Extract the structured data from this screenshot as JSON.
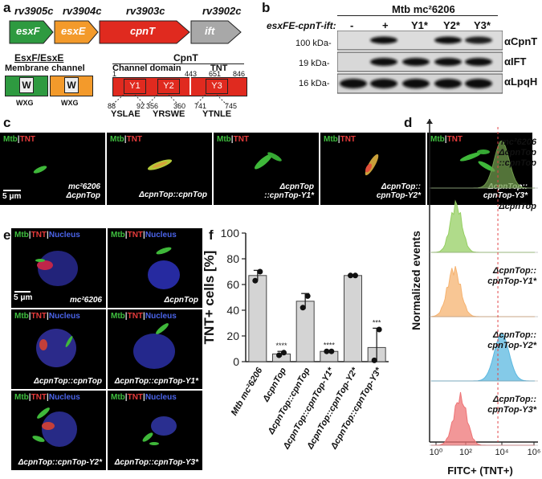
{
  "panel_letters": {
    "a": "a",
    "b": "b",
    "c": "c",
    "d": "d",
    "e": "e",
    "f": "f"
  },
  "panel_a": {
    "genes": [
      "rv3905c",
      "rv3904c",
      "rv3903c",
      "rv3902c"
    ],
    "gene_names": [
      "esxF",
      "esxE",
      "cpnT",
      "ift"
    ],
    "esx_title": "EsxF/EsxE",
    "esx_subtitle": "Membrane channel",
    "w": "W",
    "wxg": "WXG",
    "cpnt_title": "CpnT",
    "channel_domain": "Channel domain",
    "tnt": "TNT",
    "coords": [
      "1",
      "443",
      "651",
      "846"
    ],
    "y_labels": [
      "Y1",
      "Y2",
      "Y3"
    ],
    "motif_nums": [
      "88",
      "92",
      "356",
      "360",
      "741",
      "745"
    ],
    "motifs": [
      "YSLAE",
      "YRSWE",
      "YTNLE"
    ]
  },
  "panel_b": {
    "strain": "Mtb mc²6206",
    "row_label": "esxFE-cpnT-ift:",
    "lanes": [
      "-",
      "+",
      "Y1*",
      "Y2*",
      "Y3*"
    ],
    "kda": [
      "100 kDa-",
      "19 kDa-",
      "16 kDa-"
    ],
    "antibodies": [
      "αCpnT",
      "αIFT",
      "αLpqH"
    ]
  },
  "panel_c": {
    "channel_mtb": "Mtb",
    "channel_tnt": "TNT",
    "sep": "|",
    "scale": "5 μm",
    "captions": [
      [
        "mc²6206",
        "ΔcpnTop"
      ],
      [
        "ΔcpnTop::cpnTop"
      ],
      [
        "ΔcpnTop",
        "::cpnTop-Y1*"
      ],
      [
        "ΔcpnTop::",
        "cpnTop-Y2*"
      ],
      [
        "ΔcpnTop::",
        "cpnTop-Y3*"
      ]
    ]
  },
  "panel_e": {
    "channel_nucleus": "Nucleus",
    "scale": "5 μm",
    "captions": [
      "mc²6206",
      "ΔcpnTop",
      "ΔcpnTop::cpnTop",
      "ΔcpnTop::cpnTop-Y1*",
      "ΔcpnTop::cpnTop-Y2*",
      "ΔcpnTop::cpnTop-Y3*"
    ]
  },
  "panel_d": {
    "ylabel": "Normalized events",
    "xlabel": "FITC+ (TNT+)",
    "tick_labels": [
      "10⁰",
      "10²",
      "10⁴",
      "10⁶"
    ],
    "labels": [
      [
        "mc²6206",
        "ΔcpnTop",
        "::cpnTop"
      ],
      [
        "ΔcpnTop"
      ],
      [
        "ΔcpnTop::",
        "cpnTop-Y1*"
      ],
      [
        "ΔcpnTop::",
        "cpnTop-Y2*"
      ],
      [
        "ΔcpnTop::",
        "cpnTop-Y3*"
      ]
    ],
    "colors": [
      "#6f9a4c",
      "#96cf63",
      "#f6b370",
      "#5bb8e0",
      "#ee7476"
    ]
  },
  "chart_data": {
    "type": "bar",
    "categories": [
      "Mtb mc²6206",
      "ΔcpnTop",
      "ΔcpnTop::cpnTop",
      "ΔcpnTop::cpnTop-Y1*",
      "ΔcpnTop::cpnTop-Y2*",
      "ΔcpnTop::cpnTop-Y3*"
    ],
    "values": [
      67,
      6,
      47,
      8,
      67,
      11
    ],
    "errors": [
      4,
      2,
      6,
      0.5,
      0.5,
      15
    ],
    "points": [
      [
        63,
        70
      ],
      [
        5,
        7
      ],
      [
        42,
        51
      ],
      [
        8,
        8
      ],
      [
        67,
        67
      ],
      [
        1,
        25
      ]
    ],
    "significance": [
      "",
      "****",
      "",
      "****",
      "",
      "***"
    ],
    "ylabel": "TNT+ cells [%]",
    "ylim": [
      0,
      100
    ],
    "yticks": [
      0,
      20,
      40,
      60,
      80,
      100
    ],
    "bar_color": "#d4d4d4"
  }
}
